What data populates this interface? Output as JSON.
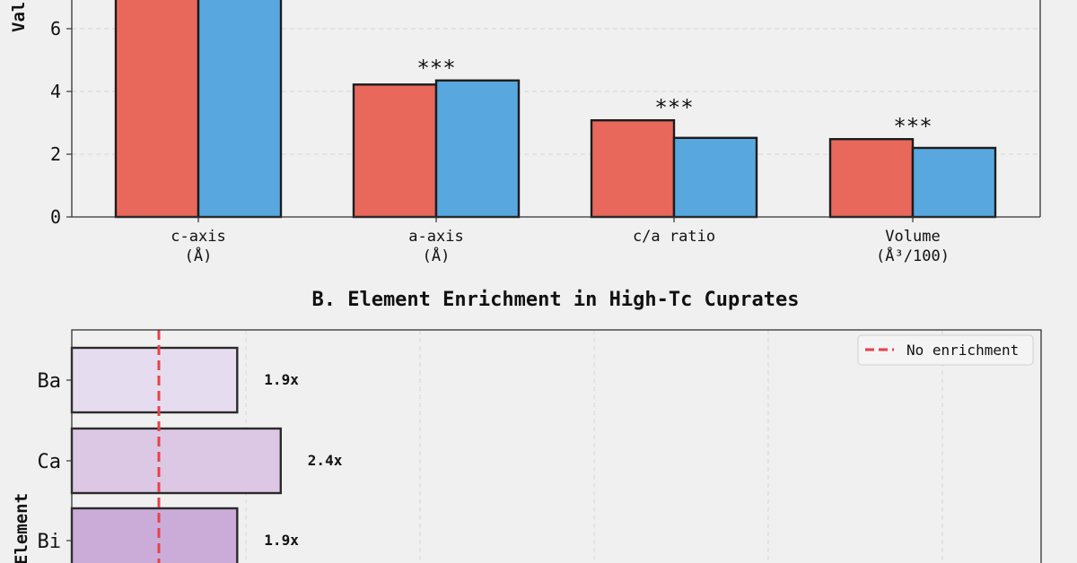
{
  "chart_data": [
    {
      "type": "bar",
      "title": "",
      "xlabel": "",
      "ylabel": "Val",
      "categories": [
        "c-axis\n(Å)",
        "a-axis\n(Å)",
        "c/a ratio",
        "Volume\n(Å³/100)"
      ],
      "series": [
        {
          "name": "",
          "color": "#e8685c",
          "values": [
            7.6,
            4.22,
            3.08,
            2.48
          ]
        },
        {
          "name": "",
          "color": "#58a8df",
          "values": [
            7.6,
            4.35,
            2.52,
            2.2
          ]
        }
      ],
      "annotations": [
        "",
        "***",
        "***",
        "***"
      ],
      "yticks": [
        "0",
        "2",
        "4",
        "6"
      ],
      "ylim": [
        0,
        7
      ],
      "grid": true
    },
    {
      "type": "bar",
      "orientation": "horizontal",
      "title": "B. Element Enrichment in High-Tc Cuprates",
      "xlabel": "",
      "ylabel": "Element",
      "categories": [
        "Ba",
        "Ca",
        "Bi"
      ],
      "values": [
        1.9,
        2.4,
        1.9
      ],
      "value_labels": [
        "1.9x",
        "2.4x",
        "1.9x"
      ],
      "colors": [
        "#e6dcef",
        "#dcc8e4",
        "#cbacd9"
      ],
      "reference_line": {
        "value": 1.0,
        "label": "No enrichment",
        "color": "#e8414a",
        "style": "dashed"
      },
      "legend_position": "top-right",
      "grid": true
    }
  ]
}
